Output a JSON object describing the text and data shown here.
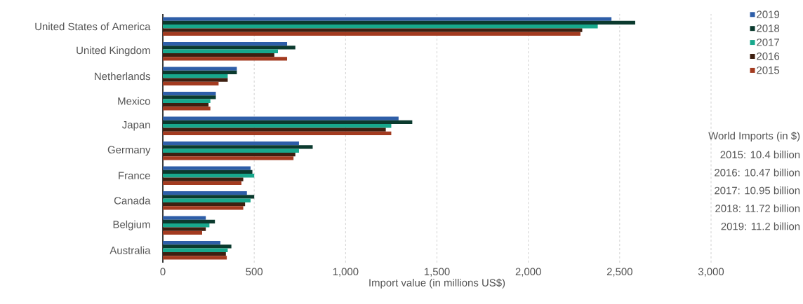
{
  "chart_data": {
    "type": "bar",
    "orientation": "horizontal",
    "categories": [
      "United States of America",
      "United Kingdom",
      "Netherlands",
      "Mexico",
      "Japan",
      "Germany",
      "France",
      "Canada",
      "Belgium",
      "Australia"
    ],
    "series": [
      {
        "name": "2019",
        "color": "#2e5ea8",
        "values": [
          2455,
          680,
          405,
          290,
          1290,
          745,
          480,
          460,
          235,
          315
        ]
      },
      {
        "name": "2018",
        "color": "#0b3a2e",
        "values": [
          2585,
          725,
          405,
          290,
          1365,
          820,
          490,
          500,
          285,
          375
        ]
      },
      {
        "name": "2017",
        "color": "#17a88c",
        "values": [
          2380,
          630,
          355,
          260,
          1250,
          745,
          500,
          480,
          255,
          355
        ]
      },
      {
        "name": "2016",
        "color": "#3d1f10",
        "values": [
          2295,
          610,
          355,
          250,
          1220,
          725,
          440,
          450,
          235,
          345
        ]
      },
      {
        "name": "2015",
        "color": "#a33b20",
        "values": [
          2285,
          680,
          305,
          260,
          1250,
          715,
          430,
          440,
          215,
          350
        ]
      }
    ],
    "xlabel": "Import value (in millions US$)",
    "xlim": [
      0,
      3000
    ],
    "xticks": [
      0,
      {
        "value": 500,
        "label": "500"
      },
      {
        "value": 1000,
        "label": "1,000"
      },
      {
        "value": 1500,
        "label": "1,500"
      },
      {
        "value": 2000,
        "label": "2,000"
      },
      {
        "value": 2500,
        "label": "2,500"
      },
      {
        "value": 3000,
        "label": "3,000"
      }
    ],
    "grid": "x",
    "legend": "top right",
    "annotations": [
      "World Imports (in $)",
      "2015: 10.4 billion",
      "2016: 10.47 billion",
      "2017: 10.95 billion",
      "2018: 11.72 billion",
      "2019: 11.2 billion"
    ]
  }
}
